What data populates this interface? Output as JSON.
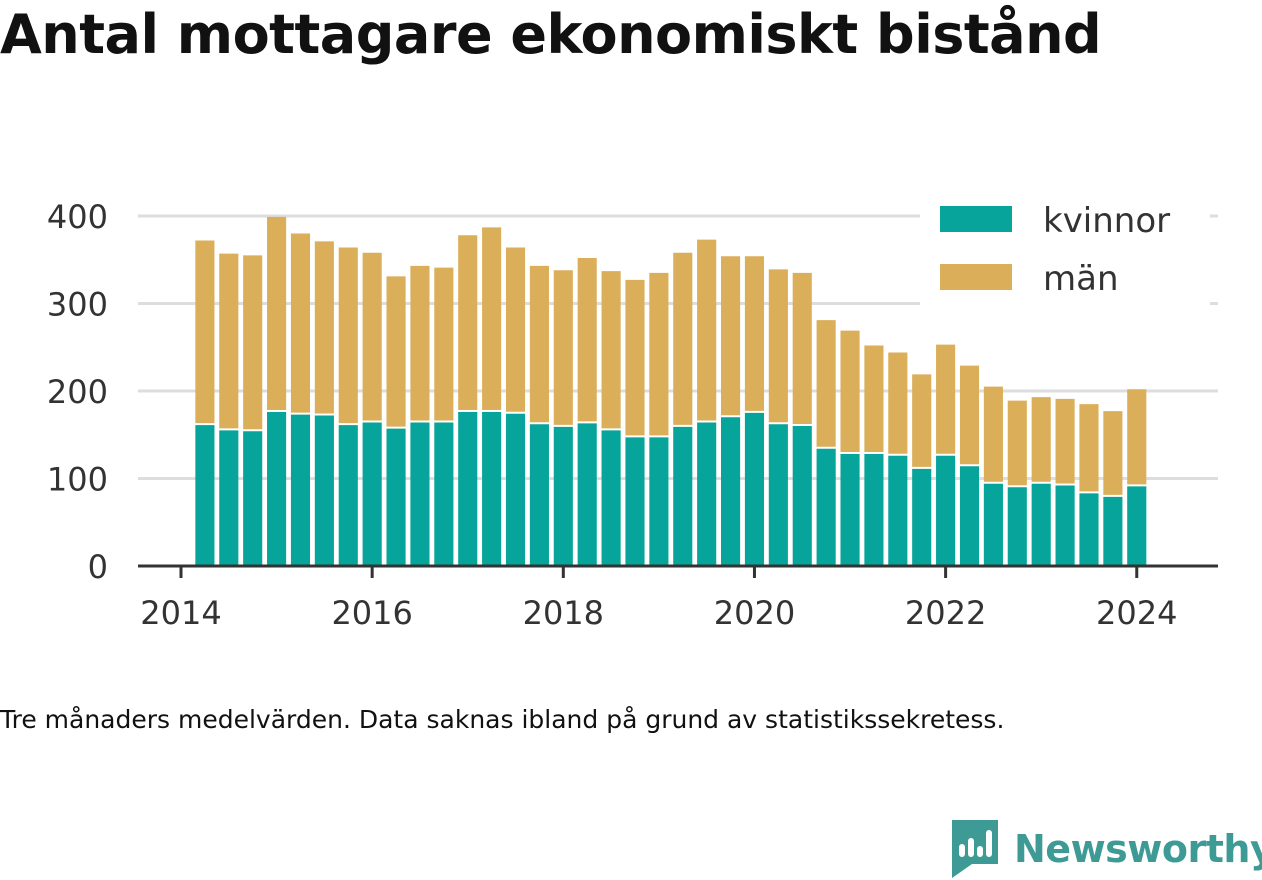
{
  "title": "Antal mottagare ekonomiskt bistånd",
  "caption": "Tre månaders medelvärden. Data saknas ibland på grund av statistikssekretess.",
  "brand": {
    "name": "Newsworthy",
    "color": "#3e9a94",
    "icon": "newsworthy-logo-icon"
  },
  "chart_data": {
    "type": "bar",
    "stacked": true,
    "x_unit": "year",
    "x": [
      2014.25,
      2014.5,
      2014.75,
      2015.0,
      2015.25,
      2015.5,
      2015.75,
      2016.0,
      2016.25,
      2016.5,
      2016.75,
      2017.0,
      2017.25,
      2017.5,
      2017.75,
      2018.0,
      2018.25,
      2018.5,
      2018.75,
      2019.0,
      2019.25,
      2019.5,
      2019.75,
      2020.0,
      2020.25,
      2020.5,
      2020.75,
      2021.0,
      2021.25,
      2021.5,
      2021.75,
      2022.0,
      2022.25,
      2022.5,
      2022.75,
      2023.0,
      2023.25,
      2023.5,
      2023.75,
      2024.0
    ],
    "series": [
      {
        "name": "kvinnor",
        "color": "#06a49a",
        "values": [
          161,
          155,
          154,
          176,
          173,
          172,
          161,
          164,
          157,
          164,
          164,
          176,
          176,
          174,
          162,
          159,
          163,
          155,
          147,
          147,
          159,
          164,
          170,
          175,
          162,
          160,
          134,
          128,
          128,
          126,
          111,
          126,
          114,
          94,
          90,
          94,
          92,
          83,
          79,
          91
        ]
      },
      {
        "name": "män",
        "color": "#dbae5a",
        "values": [
          211,
          202,
          201,
          223,
          207,
          199,
          203,
          194,
          174,
          179,
          177,
          202,
          211,
          190,
          181,
          179,
          189,
          182,
          180,
          188,
          199,
          209,
          184,
          179,
          177,
          175,
          147,
          141,
          124,
          118,
          108,
          127,
          115,
          111,
          99,
          99,
          99,
          102,
          98,
          111
        ]
      }
    ],
    "x_ticks": [
      2014,
      2016,
      2018,
      2020,
      2022,
      2024
    ],
    "y_ticks": [
      0,
      100,
      200,
      300,
      400
    ],
    "ylim": [
      0,
      400
    ],
    "xlim": [
      2013.55,
      2024.85
    ],
    "grid": true,
    "legend": {
      "position": "top-right",
      "entries": [
        "kvinnor",
        "män"
      ]
    }
  }
}
